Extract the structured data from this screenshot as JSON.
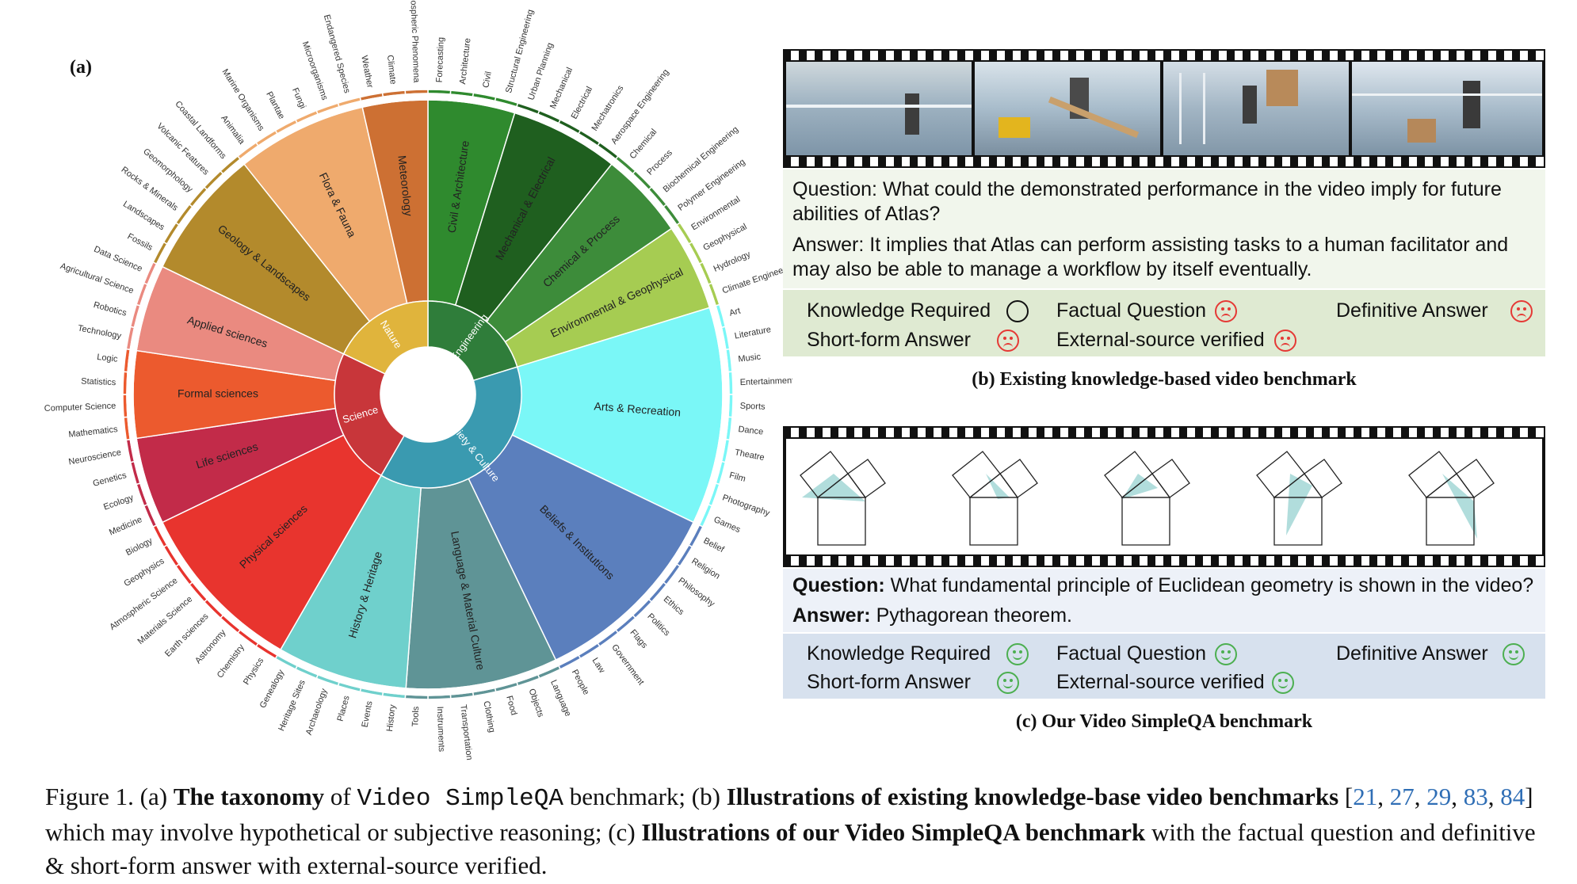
{
  "panel_a_label": "(a)",
  "taxonomy": [
    {
      "name": "Engineering",
      "color": "#2f7d3a",
      "subs": [
        {
          "name": "Civil & Architecture",
          "color": "#2f8a2e",
          "leaves": [
            "Forecasting",
            "Architecture",
            "Civil",
            "Structural Engineering"
          ]
        },
        {
          "name": "Mechanical & Electrical",
          "color": "#1f5f1f",
          "leaves": [
            "Urban Planning",
            "Mechanical",
            "Electrical",
            "Mechatronics",
            "Aerospace Engineering"
          ]
        },
        {
          "name": "Chemical & Process",
          "color": "#3d8c3a",
          "leaves": [
            "Chemical",
            "Process",
            "Biochemical Engineering",
            "Polymer Engineering"
          ]
        },
        {
          "name": "Environmental & Geophysical",
          "color": "#a6cc52",
          "leaves": [
            "Environmental",
            "Geophysical",
            "Hydrology",
            "Climate Engineering"
          ]
        }
      ]
    },
    {
      "name": "Society & Culture",
      "color": "#3a9ab0",
      "subs": [
        {
          "name": "Arts & Recreation",
          "color": "#7af7f7",
          "leaves": [
            "Art",
            "Literature",
            "Music",
            "Entertainment",
            "Sports",
            "Dance",
            "Theatre",
            "Film",
            "Photography",
            "Games"
          ]
        },
        {
          "name": "Beliefs & Institutions",
          "color": "#5b7fbd",
          "leaves": [
            "Belief",
            "Religion",
            "Philosophy",
            "Ethics",
            "Politics",
            "Flags",
            "Government",
            "Law",
            "People"
          ]
        },
        {
          "name": "Language & Material Culture",
          "color": "#5f9496",
          "leaves": [
            "Language",
            "Objects",
            "Food",
            "Clothing",
            "Transportation",
            "Instruments",
            "Tools"
          ]
        },
        {
          "name": "History & Heritage",
          "color": "#6fd0cc",
          "leaves": [
            "History",
            "Events",
            "Places",
            "Archaeology",
            "Heritage Sites",
            "Genealogy"
          ]
        }
      ]
    },
    {
      "name": "Science",
      "color": "#c8363a",
      "subs": [
        {
          "name": "Physical sciences",
          "color": "#e8342e",
          "leaves": [
            "Physics",
            "Chemistry",
            "Astronomy",
            "Earth sciences",
            "Materials Science",
            "Atmospheric Science",
            "Geophysics",
            "Biology"
          ]
        },
        {
          "name": "Life sciences",
          "color": "#c22b49",
          "leaves": [
            "Medicine",
            "Ecology",
            "Genetics",
            "Neuroscience"
          ]
        },
        {
          "name": "Formal sciences",
          "color": "#ec5a2e",
          "leaves": [
            "Mathematics",
            "Computer Science",
            "Statistics",
            "Logic"
          ]
        },
        {
          "name": "Applied sciences",
          "color": "#ea8a80",
          "leaves": [
            "Technology",
            "Robotics",
            "Agricultural Science",
            "Data Science"
          ]
        }
      ]
    },
    {
      "name": "Nature",
      "color": "#e0b43c",
      "subs": [
        {
          "name": "Geology & Landscapes",
          "color": "#b38a2c",
          "leaves": [
            "Fossils",
            "Landscapes",
            "Rocks & Minerals",
            "Geomorphology",
            "Volcanic Features",
            "Coastal Landforms"
          ]
        },
        {
          "name": "Flora & Fauna",
          "color": "#efaa6d",
          "leaves": [
            "Animalia",
            "Marine Organisms",
            "Plantae",
            "Fungi",
            "Microorganisms",
            "Endangered Species"
          ]
        },
        {
          "name": "Meteorology",
          "color": "#cd7033",
          "leaves": [
            "Weather",
            "Climate",
            "Atmospheric Phenomena"
          ]
        }
      ]
    }
  ],
  "panel_b": {
    "question": "Question: What could the demonstrated performance in the video imply for future abilities of Atlas?",
    "answer": "Answer: It implies that Atlas can perform assisting tasks to a human facilitator and may also be able to manage a workflow by itself eventually.",
    "props": [
      {
        "label": "Knowledge Required",
        "face": "happy"
      },
      {
        "label": "Factual Question",
        "face": "sad"
      },
      {
        "label": "Definitive Answer",
        "face": "sad"
      },
      {
        "label": "Short-form Answer",
        "face": "sad"
      },
      {
        "label": "External-source verified",
        "face": "sad"
      }
    ],
    "caption": "(b) Existing knowledge-based video benchmark"
  },
  "panel_c": {
    "question_label": "Question:",
    "question_text": " What fundamental principle of Euclidean geometry is shown in the video?",
    "answer_label": "Answer:",
    "answer_text": " Pythagorean theorem.",
    "props": [
      {
        "label": "Knowledge Required",
        "face": "happy"
      },
      {
        "label": "Factual Question",
        "face": "happy"
      },
      {
        "label": "Definitive Answer",
        "face": "happy"
      },
      {
        "label": "Short-form Answer",
        "face": "happy"
      },
      {
        "label": "External-source verified",
        "face": "happy"
      }
    ],
    "caption": "(c) Our Video SimpleQA benchmark"
  },
  "figure_caption": {
    "p1": "Figure 1.  (a) ",
    "b1": "The taxonomy",
    "p2": " of ",
    "mono": "Video SimpleQA",
    "p3": " benchmark; (b) ",
    "b2": "Illustrations of existing knowledge-base video benchmarks",
    "p4": " [",
    "r1": "21",
    "s1": ", ",
    "r2": "27",
    "s2": ", ",
    "r3": "29",
    "s3": ", ",
    "r4": "83",
    "s4": ", ",
    "r5": "84",
    "p5": "] which may involve hypothetical or subjective reasoning; (c) ",
    "b3": "Illustrations of our Video SimpleQA benchmark",
    "p6": " with the factual question and definitive & short-form answer with external-source verified."
  }
}
